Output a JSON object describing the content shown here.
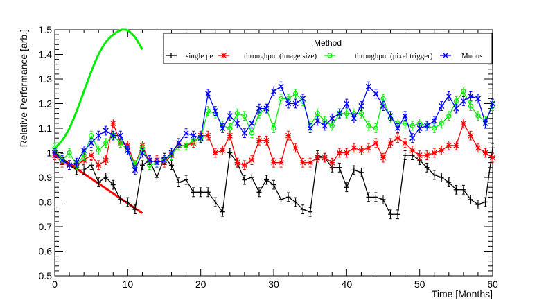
{
  "chart_data": {
    "type": "line",
    "title": "",
    "xlabel": "Time [Months]",
    "ylabel": "Relative Performance [arb.]",
    "xlim": [
      0,
      60
    ],
    "ylim": [
      0.5,
      1.5
    ],
    "x_ticks": [
      "0",
      "10",
      "20",
      "30",
      "40",
      "50",
      "60"
    ],
    "y_ticks": [
      "0.5",
      "0.6",
      "0.7",
      "0.8",
      "0.9",
      "1",
      "1.1",
      "1.2",
      "1.3",
      "1.4",
      "1.5"
    ],
    "legend": {
      "title": "Method",
      "placement": "top-right"
    },
    "colors": {
      "single_pe": "#000000",
      "throughput_image": "#ff0000",
      "throughput_pixel": "#00ee00",
      "muons": "#0000ff"
    },
    "series": [
      {
        "name": "single pe",
        "marker": "plus",
        "color": "#000000",
        "x": [
          0,
          1,
          2,
          3,
          4,
          5,
          6,
          7,
          8,
          9,
          10,
          11,
          12,
          13,
          14,
          15,
          16,
          17,
          18,
          19,
          20,
          21,
          22,
          23,
          24,
          25,
          26,
          27,
          28,
          29,
          30,
          31,
          32,
          33,
          34,
          35,
          36,
          37,
          38,
          39,
          40,
          41,
          42,
          43,
          44,
          45,
          46,
          47,
          48,
          49,
          50,
          51,
          52,
          53,
          54,
          55,
          56,
          57,
          58,
          59,
          60
        ],
        "y": [
          1.0,
          0.98,
          0.95,
          0.93,
          0.93,
          0.95,
          0.88,
          0.9,
          0.87,
          0.81,
          0.8,
          0.77,
          0.95,
          0.97,
          0.9,
          0.98,
          0.95,
          0.88,
          0.89,
          0.84,
          0.84,
          0.84,
          0.8,
          0.76,
          1.0,
          0.96,
          0.89,
          0.9,
          0.84,
          0.89,
          0.87,
          0.81,
          0.82,
          0.8,
          0.77,
          0.76,
          0.99,
          0.98,
          0.94,
          0.94,
          0.86,
          0.93,
          0.92,
          0.82,
          0.82,
          0.81,
          0.75,
          0.75,
          0.99,
          0.99,
          0.97,
          0.94,
          0.91,
          0.9,
          0.88,
          0.85,
          0.85,
          0.81,
          0.79,
          0.8,
          1.02
        ],
        "error": 0.018
      },
      {
        "name": "throughput (image size)",
        "marker": "star",
        "color": "#ff0000",
        "x": [
          0,
          1,
          2,
          3,
          4,
          5,
          6,
          7,
          8,
          9,
          10,
          11,
          12,
          13,
          14,
          15,
          16,
          17,
          18,
          19,
          20,
          21,
          22,
          23,
          24,
          25,
          26,
          27,
          28,
          29,
          30,
          31,
          32,
          33,
          34,
          35,
          36,
          37,
          38,
          39,
          40,
          41,
          42,
          43,
          44,
          45,
          46,
          47,
          48,
          49,
          50,
          51,
          52,
          53,
          54,
          55,
          56,
          57,
          58,
          59,
          60
        ],
        "y": [
          0.99,
          0.96,
          0.95,
          0.95,
          0.97,
          0.99,
          0.95,
          0.97,
          1.12,
          1.04,
          1.03,
          0.95,
          1.03,
          0.96,
          0.97,
          0.96,
          0.99,
          1.03,
          1.03,
          1.04,
          1.07,
          1.07,
          1.0,
          1.01,
          1.07,
          0.96,
          0.95,
          0.97,
          1.05,
          1.05,
          0.96,
          0.96,
          1.07,
          1.02,
          0.96,
          0.96,
          0.98,
          0.98,
          0.96,
          1.0,
          1.0,
          1.02,
          1.01,
          1.02,
          1.04,
          0.98,
          1.04,
          1.06,
          1.04,
          1.01,
          0.99,
          0.99,
          1.0,
          1.01,
          1.03,
          1.03,
          1.12,
          1.07,
          1.02,
          1.0,
          0.98
        ],
        "error": 0.018
      },
      {
        "name": "throughput (pixel trigger)",
        "marker": "circle",
        "color": "#00ee00",
        "x": [
          0,
          1,
          2,
          3,
          4,
          5,
          6,
          7,
          8,
          9,
          10,
          11,
          12,
          13,
          14,
          15,
          16,
          17,
          18,
          19,
          20,
          21,
          22,
          23,
          24,
          25,
          26,
          27,
          28,
          29,
          30,
          31,
          32,
          33,
          34,
          35,
          36,
          37,
          38,
          39,
          40,
          41,
          42,
          43,
          44,
          45,
          46,
          47,
          48,
          49,
          50,
          51,
          52,
          53,
          54,
          55,
          56,
          57,
          58,
          59,
          60
        ],
        "y": [
          1.02,
          0.97,
          1.0,
          0.95,
          0.99,
          1.07,
          1.01,
          1.04,
          1.07,
          1.04,
          1.01,
          0.95,
          1.02,
          0.95,
          0.96,
          0.97,
          0.99,
          1.03,
          1.03,
          1.05,
          1.06,
          1.17,
          1.16,
          1.11,
          1.1,
          1.16,
          1.15,
          1.08,
          1.16,
          1.18,
          1.1,
          1.22,
          1.22,
          1.24,
          1.21,
          1.11,
          1.16,
          1.13,
          1.11,
          1.16,
          1.16,
          1.16,
          1.16,
          1.11,
          1.1,
          1.22,
          1.14,
          1.12,
          1.12,
          1.11,
          1.12,
          1.11,
          1.1,
          1.12,
          1.15,
          1.21,
          1.25,
          1.19,
          1.15,
          1.13,
          1.19
        ],
        "error": 0.018
      },
      {
        "name": "Muons",
        "marker": "x",
        "color": "#0000ff",
        "x": [
          0,
          1,
          2,
          3,
          4,
          5,
          6,
          7,
          8,
          9,
          10,
          11,
          12,
          13,
          14,
          15,
          16,
          17,
          18,
          19,
          20,
          21,
          22,
          23,
          24,
          25,
          26,
          27,
          28,
          29,
          30,
          31,
          32,
          33,
          34,
          35,
          36,
          37,
          38,
          39,
          40,
          41,
          42,
          43,
          44,
          45,
          46,
          47,
          48,
          49,
          50,
          51,
          52,
          53,
          54,
          55,
          56,
          57,
          58,
          59,
          60
        ],
        "y": [
          1.0,
          0.97,
          0.95,
          0.96,
          1.01,
          1.04,
          1.07,
          1.09,
          1.07,
          1.07,
          1.01,
          0.93,
          1.0,
          0.97,
          0.96,
          0.97,
          1.0,
          1.04,
          1.08,
          1.07,
          1.06,
          1.24,
          1.17,
          1.1,
          1.15,
          1.12,
          1.08,
          1.12,
          1.18,
          1.18,
          1.25,
          1.27,
          1.2,
          1.2,
          1.22,
          1.1,
          1.13,
          1.11,
          1.14,
          1.16,
          1.2,
          1.14,
          1.19,
          1.27,
          1.24,
          1.19,
          1.15,
          1.1,
          1.15,
          1.06,
          1.1,
          1.11,
          1.13,
          1.19,
          1.23,
          1.18,
          1.21,
          1.23,
          1.22,
          1.12,
          1.2
        ],
        "error": 0.018
      }
    ],
    "fits": [
      {
        "name": "green fit curve",
        "color": "#00ee00",
        "x": [
          0,
          1,
          2,
          3,
          4,
          5,
          6,
          7,
          8,
          9,
          9.5,
          10,
          11,
          12
        ],
        "y": [
          1.02,
          1.05,
          1.1,
          1.17,
          1.25,
          1.33,
          1.4,
          1.45,
          1.48,
          1.498,
          1.5,
          1.497,
          1.47,
          1.42
        ]
      },
      {
        "name": "red fit line",
        "color": "#ff0000",
        "x": [
          0,
          12
        ],
        "y": [
          0.995,
          0.755
        ]
      }
    ]
  }
}
